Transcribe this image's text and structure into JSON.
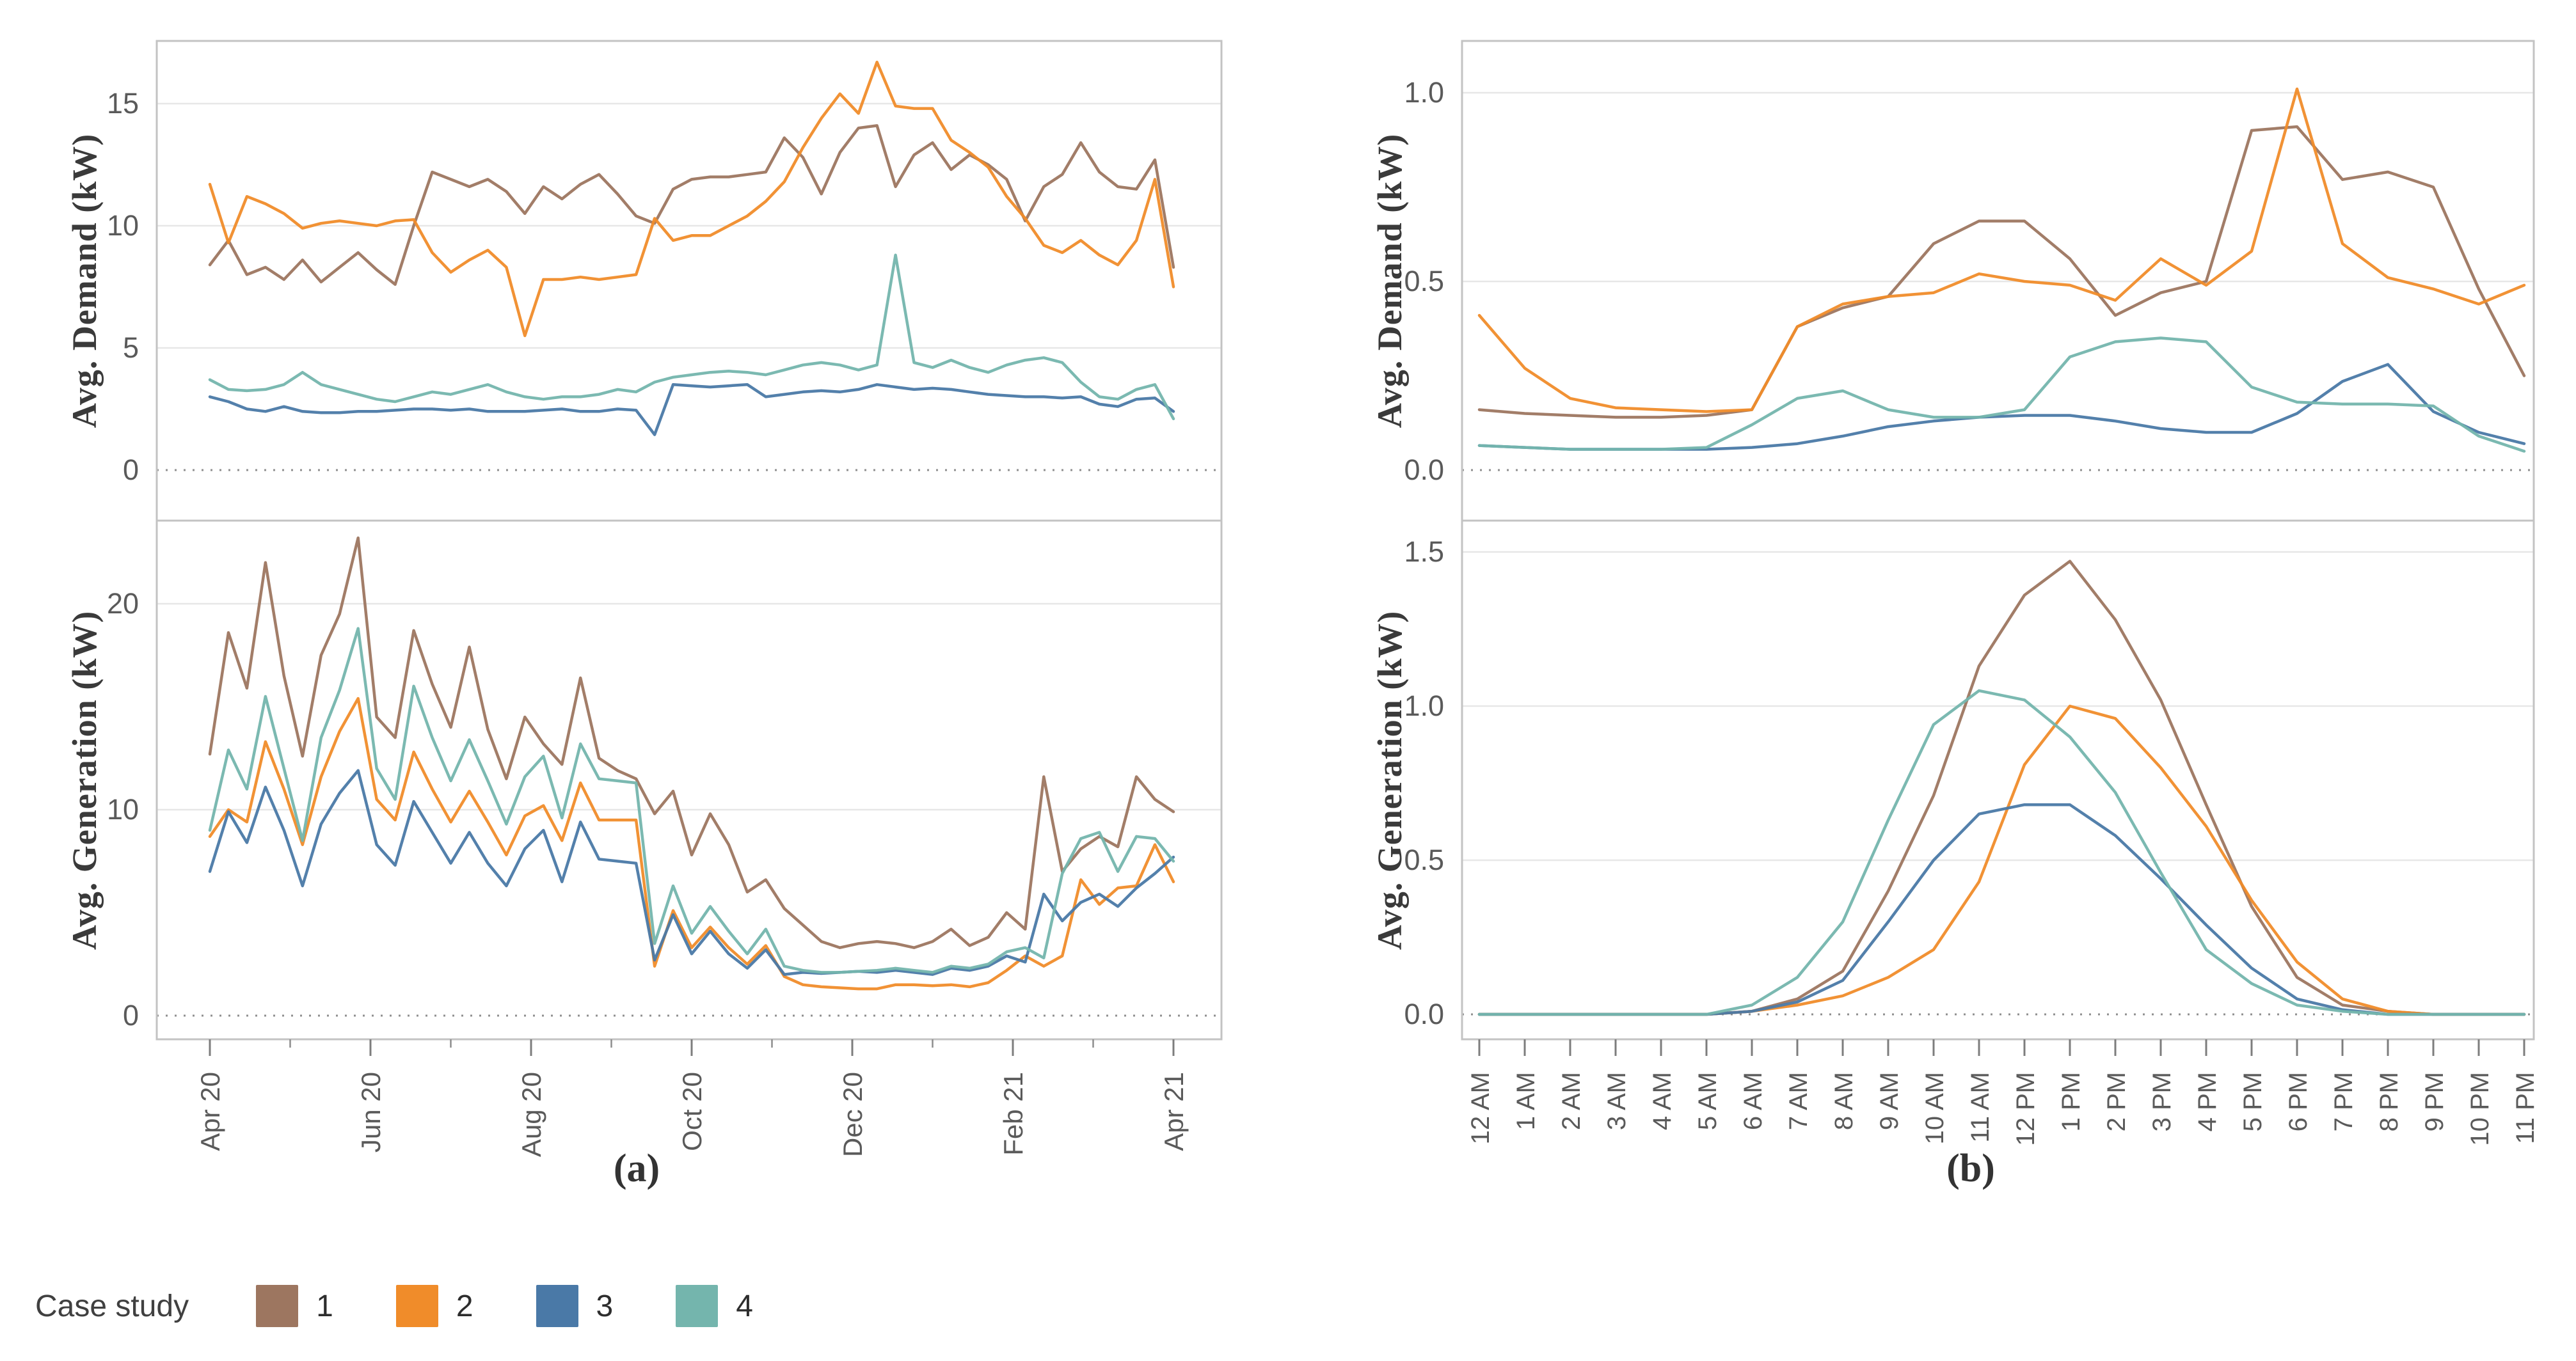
{
  "legend": {
    "title": "Case study",
    "items": [
      {
        "label": "1",
        "color": "#9d7660"
      },
      {
        "label": "2",
        "color": "#f08c2a"
      },
      {
        "label": "3",
        "color": "#4a79a7"
      },
      {
        "label": "4",
        "color": "#74b5ad"
      }
    ]
  },
  "chart_data": [
    {
      "block": "a",
      "caption": "(a)",
      "type": "line",
      "x_axis": {
        "unit": "week",
        "n_points": 53,
        "tick_labels": [
          "Apr 20",
          "Jun 20",
          "Aug 20",
          "Oct 20",
          "Dec 20",
          "Feb 21",
          "Apr 21"
        ]
      },
      "panels": [
        {
          "ylabel": "Avg. Demand (kW)",
          "ylim": [
            0,
            17.5
          ],
          "yticks": [
            0,
            5,
            10,
            15
          ],
          "ytick_labels": [
            "0",
            "5",
            "10",
            "15"
          ],
          "grid": true,
          "zero_line": "dotted",
          "series": [
            {
              "name": "1",
              "color": "#9d7660",
              "values": [
                8.4,
                9.4,
                8.0,
                8.3,
                7.8,
                8.6,
                7.7,
                8.3,
                8.9,
                8.2,
                7.6,
                10.0,
                12.2,
                11.9,
                11.6,
                11.9,
                11.4,
                10.5,
                11.6,
                11.1,
                11.7,
                12.1,
                11.3,
                10.4,
                10.1,
                11.5,
                11.9,
                12.0,
                12.0,
                12.1,
                12.2,
                13.6,
                12.8,
                11.3,
                13.0,
                14.0,
                14.1,
                11.6,
                12.9,
                13.4,
                12.3,
                12.9,
                12.5,
                11.9,
                10.2,
                11.6,
                12.1,
                13.4,
                12.2,
                11.6,
                11.5,
                12.7,
                8.3
              ]
            },
            {
              "name": "2",
              "color": "#f08c2a",
              "values": [
                11.7,
                9.3,
                11.2,
                10.9,
                10.5,
                9.9,
                10.1,
                10.2,
                10.1,
                10.0,
                10.2,
                10.25,
                8.9,
                8.1,
                8.6,
                9.0,
                8.3,
                5.5,
                7.8,
                7.8,
                7.9,
                7.8,
                7.9,
                8.0,
                10.3,
                9.4,
                9.6,
                9.6,
                10.0,
                10.4,
                11.0,
                11.8,
                13.2,
                14.4,
                15.4,
                14.6,
                16.7,
                14.9,
                14.8,
                14.8,
                13.5,
                13.0,
                12.4,
                11.2,
                10.3,
                9.2,
                8.9,
                9.4,
                8.8,
                8.4,
                9.4,
                11.9,
                7.5
              ]
            },
            {
              "name": "3",
              "color": "#4a79a7",
              "values": [
                3.0,
                2.8,
                2.5,
                2.4,
                2.6,
                2.4,
                2.35,
                2.35,
                2.4,
                2.4,
                2.45,
                2.5,
                2.5,
                2.45,
                2.5,
                2.4,
                2.4,
                2.4,
                2.45,
                2.5,
                2.4,
                2.4,
                2.5,
                2.45,
                1.45,
                3.5,
                3.45,
                3.4,
                3.45,
                3.5,
                3.0,
                3.1,
                3.2,
                3.25,
                3.2,
                3.3,
                3.5,
                3.4,
                3.3,
                3.35,
                3.3,
                3.2,
                3.1,
                3.05,
                3.0,
                3.0,
                2.95,
                3.0,
                2.7,
                2.6,
                2.9,
                2.95,
                2.4
              ]
            },
            {
              "name": "4",
              "color": "#74b5ad",
              "values": [
                3.7,
                3.3,
                3.25,
                3.3,
                3.5,
                4.0,
                3.5,
                3.3,
                3.1,
                2.9,
                2.8,
                3.0,
                3.2,
                3.1,
                3.3,
                3.5,
                3.2,
                3.0,
                2.9,
                3.0,
                3.0,
                3.1,
                3.3,
                3.2,
                3.6,
                3.8,
                3.9,
                4.0,
                4.05,
                4.0,
                3.9,
                4.1,
                4.3,
                4.4,
                4.3,
                4.1,
                4.3,
                8.8,
                4.4,
                4.2,
                4.5,
                4.2,
                4.0,
                4.3,
                4.5,
                4.6,
                4.4,
                3.6,
                3.0,
                2.9,
                3.3,
                3.5,
                2.1
              ]
            }
          ]
        },
        {
          "ylabel": "Avg. Generation (kW)",
          "ylim": [
            0,
            24.5
          ],
          "yticks": [
            0,
            10,
            20
          ],
          "ytick_labels": [
            "0",
            "10",
            "20"
          ],
          "grid": true,
          "zero_line": "dotted",
          "series": [
            {
              "name": "1",
              "color": "#9d7660",
              "values": [
                12.7,
                18.6,
                15.9,
                22.0,
                16.5,
                12.6,
                17.5,
                19.5,
                23.2,
                14.5,
                13.5,
                18.7,
                16.1,
                14.0,
                17.9,
                13.9,
                11.5,
                14.5,
                13.2,
                12.2,
                16.4,
                12.5,
                11.9,
                11.5,
                9.8,
                10.9,
                7.8,
                9.8,
                8.3,
                6.0,
                6.6,
                5.2,
                4.4,
                3.6,
                3.3,
                3.5,
                3.6,
                3.5,
                3.3,
                3.6,
                4.2,
                3.4,
                3.8,
                5.0,
                4.2,
                11.6,
                7.0,
                8.1,
                8.7,
                8.2,
                11.6,
                10.5,
                9.9
              ]
            },
            {
              "name": "2",
              "color": "#f08c2a",
              "values": [
                8.7,
                10.0,
                9.4,
                13.3,
                11.0,
                8.3,
                11.6,
                13.8,
                15.4,
                10.5,
                9.5,
                12.8,
                11.0,
                9.4,
                10.9,
                9.4,
                7.8,
                9.7,
                10.2,
                8.5,
                11.3,
                9.5,
                9.5,
                9.5,
                2.4,
                5.1,
                3.3,
                4.3,
                3.3,
                2.5,
                3.4,
                1.9,
                1.5,
                1.4,
                1.35,
                1.3,
                1.3,
                1.5,
                1.5,
                1.45,
                1.5,
                1.4,
                1.6,
                2.2,
                2.9,
                2.4,
                2.9,
                6.6,
                5.4,
                6.2,
                6.3,
                8.3,
                6.5
              ]
            },
            {
              "name": "3",
              "color": "#4a79a7",
              "values": [
                7.0,
                9.9,
                8.4,
                11.1,
                9.0,
                6.3,
                9.3,
                10.8,
                11.9,
                8.3,
                7.3,
                10.4,
                8.9,
                7.4,
                8.9,
                7.4,
                6.3,
                8.1,
                9.0,
                6.5,
                9.4,
                7.6,
                7.5,
                7.4,
                2.7,
                4.9,
                3.0,
                4.1,
                3.0,
                2.3,
                3.2,
                2.0,
                2.1,
                2.05,
                2.1,
                2.15,
                2.1,
                2.2,
                2.1,
                2.0,
                2.3,
                2.2,
                2.4,
                2.9,
                2.6,
                5.9,
                4.6,
                5.5,
                5.9,
                5.3,
                6.2,
                6.9,
                7.7
              ]
            },
            {
              "name": "4",
              "color": "#74b5ad",
              "values": [
                9.0,
                12.9,
                11.0,
                15.5,
                12.0,
                8.5,
                13.5,
                15.8,
                18.8,
                12.0,
                10.5,
                16.0,
                13.5,
                11.4,
                13.4,
                11.4,
                9.3,
                11.6,
                12.6,
                9.6,
                13.2,
                11.5,
                11.4,
                11.3,
                3.5,
                6.3,
                4.0,
                5.3,
                4.1,
                3.0,
                4.2,
                2.4,
                2.2,
                2.1,
                2.1,
                2.15,
                2.2,
                2.3,
                2.2,
                2.1,
                2.4,
                2.3,
                2.5,
                3.1,
                3.3,
                2.8,
                6.9,
                8.6,
                8.9,
                7.0,
                8.7,
                8.6,
                7.5
              ]
            }
          ]
        }
      ]
    },
    {
      "block": "b",
      "caption": "(b)",
      "type": "line",
      "x_axis": {
        "unit": "hour",
        "n_points": 24,
        "tick_labels": [
          "12 AM",
          "1 AM",
          "2 AM",
          "3 AM",
          "4 AM",
          "5 AM",
          "6 AM",
          "7 AM",
          "8 AM",
          "9 AM",
          "10 AM",
          "11 AM",
          "12 PM",
          "1 PM",
          "2 PM",
          "3 PM",
          "4 PM",
          "5 PM",
          "6 PM",
          "7 PM",
          "8 PM",
          "9 PM",
          "10 PM",
          "11 PM"
        ]
      },
      "panels": [
        {
          "ylabel": "Avg. Demand (kW)",
          "ylim": [
            0,
            1.13
          ],
          "yticks": [
            0,
            0.5,
            1.0
          ],
          "ytick_labels": [
            "0.0",
            "0.5",
            "1.0"
          ],
          "grid": true,
          "zero_line": "dotted",
          "series": [
            {
              "name": "1",
              "color": "#9d7660",
              "values": [
                0.16,
                0.15,
                0.145,
                0.14,
                0.14,
                0.145,
                0.16,
                0.38,
                0.43,
                0.46,
                0.6,
                0.66,
                0.66,
                0.56,
                0.41,
                0.47,
                0.5,
                0.9,
                0.91,
                0.77,
                0.79,
                0.75,
                0.48,
                0.25
              ]
            },
            {
              "name": "2",
              "color": "#f08c2a",
              "values": [
                0.41,
                0.27,
                0.19,
                0.165,
                0.16,
                0.155,
                0.16,
                0.38,
                0.44,
                0.46,
                0.47,
                0.52,
                0.5,
                0.49,
                0.45,
                0.56,
                0.49,
                0.58,
                1.01,
                0.6,
                0.51,
                0.48,
                0.44,
                0.49
              ]
            },
            {
              "name": "3",
              "color": "#4a79a7",
              "values": [
                0.065,
                0.06,
                0.055,
                0.055,
                0.055,
                0.055,
                0.06,
                0.07,
                0.09,
                0.115,
                0.13,
                0.14,
                0.145,
                0.145,
                0.13,
                0.11,
                0.1,
                0.1,
                0.15,
                0.235,
                0.28,
                0.155,
                0.1,
                0.07
              ]
            },
            {
              "name": "4",
              "color": "#74b5ad",
              "values": [
                0.065,
                0.06,
                0.055,
                0.055,
                0.055,
                0.06,
                0.12,
                0.19,
                0.21,
                0.16,
                0.14,
                0.14,
                0.16,
                0.3,
                0.34,
                0.35,
                0.34,
                0.22,
                0.18,
                0.175,
                0.175,
                0.17,
                0.09,
                0.05
              ]
            }
          ]
        },
        {
          "ylabel": "Avg. Generation (kW)",
          "ylim": [
            0,
            1.57
          ],
          "yticks": [
            0,
            0.5,
            1.0,
            1.5
          ],
          "ytick_labels": [
            "0.0",
            "0.5",
            "1.0",
            "1.5"
          ],
          "grid": true,
          "zero_line": "dotted",
          "series": [
            {
              "name": "1",
              "color": "#9d7660",
              "values": [
                0,
                0,
                0,
                0,
                0,
                0,
                0.01,
                0.05,
                0.14,
                0.4,
                0.71,
                1.13,
                1.36,
                1.47,
                1.28,
                1.02,
                0.68,
                0.35,
                0.12,
                0.03,
                0.01,
                0,
                0,
                0
              ]
            },
            {
              "name": "2",
              "color": "#f08c2a",
              "values": [
                0,
                0,
                0,
                0,
                0,
                0,
                0.01,
                0.03,
                0.06,
                0.12,
                0.21,
                0.43,
                0.81,
                1.0,
                0.96,
                0.8,
                0.61,
                0.37,
                0.17,
                0.05,
                0.01,
                0,
                0,
                0
              ]
            },
            {
              "name": "3",
              "color": "#4a79a7",
              "values": [
                0,
                0,
                0,
                0,
                0,
                0,
                0.01,
                0.04,
                0.11,
                0.3,
                0.5,
                0.65,
                0.68,
                0.68,
                0.58,
                0.44,
                0.29,
                0.15,
                0.05,
                0.015,
                0,
                0,
                0,
                0
              ]
            },
            {
              "name": "4",
              "color": "#74b5ad",
              "values": [
                0,
                0,
                0,
                0,
                0,
                0,
                0.03,
                0.12,
                0.3,
                0.63,
                0.94,
                1.05,
                1.02,
                0.9,
                0.72,
                0.46,
                0.21,
                0.1,
                0.03,
                0.01,
                0,
                0,
                0,
                0
              ]
            }
          ]
        }
      ]
    }
  ]
}
